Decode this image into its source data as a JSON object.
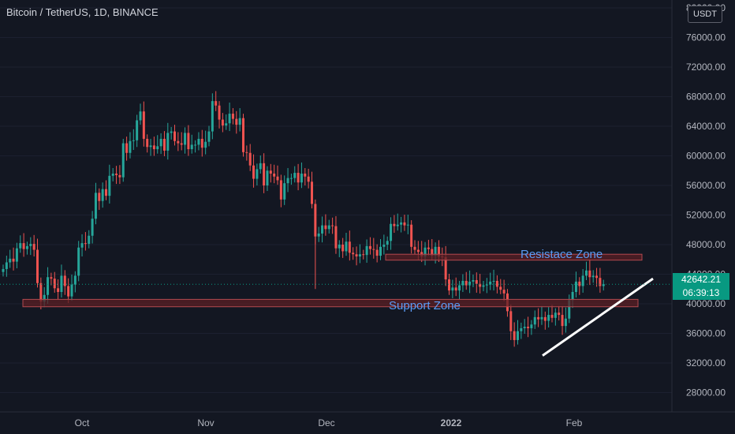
{
  "header": {
    "title": "Bitcoin / TetherUS, 1D, BINANCE",
    "currency": "USDT"
  },
  "price_label": {
    "price": "42642.21",
    "countdown": "06:39:13",
    "color": "#089981"
  },
  "colors": {
    "background": "#131722",
    "up": "#26a69a",
    "down": "#ef5350",
    "zone_fill": "#5b1f24",
    "zone_border": "#b2494f",
    "zone_text": "#5b9cf6",
    "trendline": "#ffffff",
    "axis_text": "#b2b5be"
  },
  "chart_data": {
    "type": "candlestick",
    "title": "Bitcoin / TetherUS, 1D, BINANCE",
    "x_tick_labels": [
      "Oct",
      "Nov",
      "Dec",
      "2022",
      "Feb"
    ],
    "y_tick_labels": [
      "80000.00",
      "76000.00",
      "72000.00",
      "68000.00",
      "64000.00",
      "60000.00",
      "56000.00",
      "52000.00",
      "48000.00",
      "44000.00",
      "40000.00",
      "36000.00",
      "32000.00",
      "28000.00"
    ],
    "ylim": [
      24500,
      80000
    ],
    "last_price": 42642.21,
    "closes": [
      44700,
      45600,
      46100,
      45700,
      47500,
      48200,
      47400,
      47800,
      48100,
      47300,
      42800,
      40300,
      41200,
      43600,
      43400,
      42100,
      41600,
      43800,
      42400,
      41000,
      42600,
      43800,
      47600,
      48200,
      48100,
      49200,
      51500,
      55000,
      53900,
      55500,
      54600,
      57300,
      57600,
      57400,
      57100,
      61700,
      60400,
      62000,
      62100,
      64800,
      66000,
      62300,
      61200,
      61400,
      60900,
      61300,
      62300,
      60700,
      63100,
      63300,
      62000,
      61700,
      61500,
      63100,
      60900,
      61500,
      61500,
      62300,
      61100,
      61900,
      63300,
      67400,
      66800,
      64900,
      64100,
      64400,
      65700,
      65000,
      64200,
      65100,
      60500,
      60400,
      58700,
      56900,
      58200,
      59000,
      56000,
      58000,
      57600,
      57200,
      56700,
      54100,
      56300,
      57000,
      57000,
      57700,
      56400,
      57600,
      57200,
      56500,
      53500,
      49100,
      49500,
      50600,
      50100,
      50600,
      50500,
      47500,
      48000,
      47100,
      48400,
      46900,
      46700,
      46400,
      46700,
      46600,
      47800,
      47400,
      47300,
      46500,
      47700,
      48000,
      48500,
      50800,
      50500,
      50700,
      51000,
      50600,
      50700,
      47700,
      47300,
      47000,
      46400,
      47600,
      47400,
      46500,
      47700,
      46400,
      46300,
      43300,
      41800,
      42200,
      41800,
      42500,
      43100,
      42500,
      43000,
      43200,
      42700,
      42300,
      42500,
      42600,
      43000,
      43100,
      42300,
      41900,
      41400,
      39000,
      36300,
      35100,
      36300,
      36700,
      36900,
      36700,
      37200,
      38200,
      37900,
      38200,
      37700,
      38500,
      38100,
      38800,
      38500,
      37000,
      38000,
      40500,
      41600,
      43000,
      42400,
      43800,
      44500,
      43600,
      43800,
      43500,
      42400,
      42650
    ],
    "support_zone": {
      "label": "Support Zone",
      "from": 39600,
      "to": 40600
    },
    "resistance_zone": {
      "label": "Resistace Zone",
      "from": 45900,
      "to": 46700
    },
    "trendline": {
      "from_price": 33000,
      "to_price": 43400
    }
  }
}
